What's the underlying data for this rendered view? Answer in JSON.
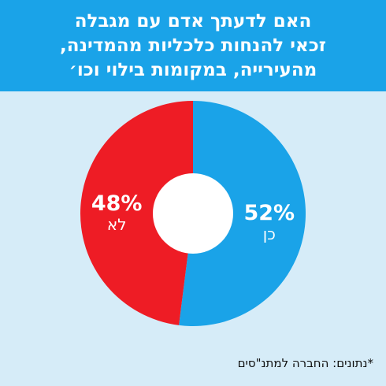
{
  "title_lines": [
    "האם לדעתך אדם עם מגבלה",
    "זכאי להנחות כלכליות מהמדינה,",
    "מהעירייה, במקומות בילוי וכו׳"
  ],
  "footnote": "*נתונים: החברה למתנ\"סים",
  "colors": {
    "header": "#1aa3e8",
    "background": "#d6ecf8",
    "yes": "#1aa3e8",
    "no": "#ee1c25",
    "hole": "#ffffff"
  },
  "chart_data": {
    "type": "pie",
    "title": "האם לדעתך אדם עם מגבלה זכאי להנחות כלכליות מהמדינה, מהעירייה, במקומות בילוי וכו׳",
    "slices": [
      {
        "label": "כן",
        "value": 52,
        "value_label": "52%",
        "color": "#1aa3e8"
      },
      {
        "label": "לא",
        "value": 48,
        "value_label": "48%",
        "color": "#ee1c25"
      }
    ]
  }
}
